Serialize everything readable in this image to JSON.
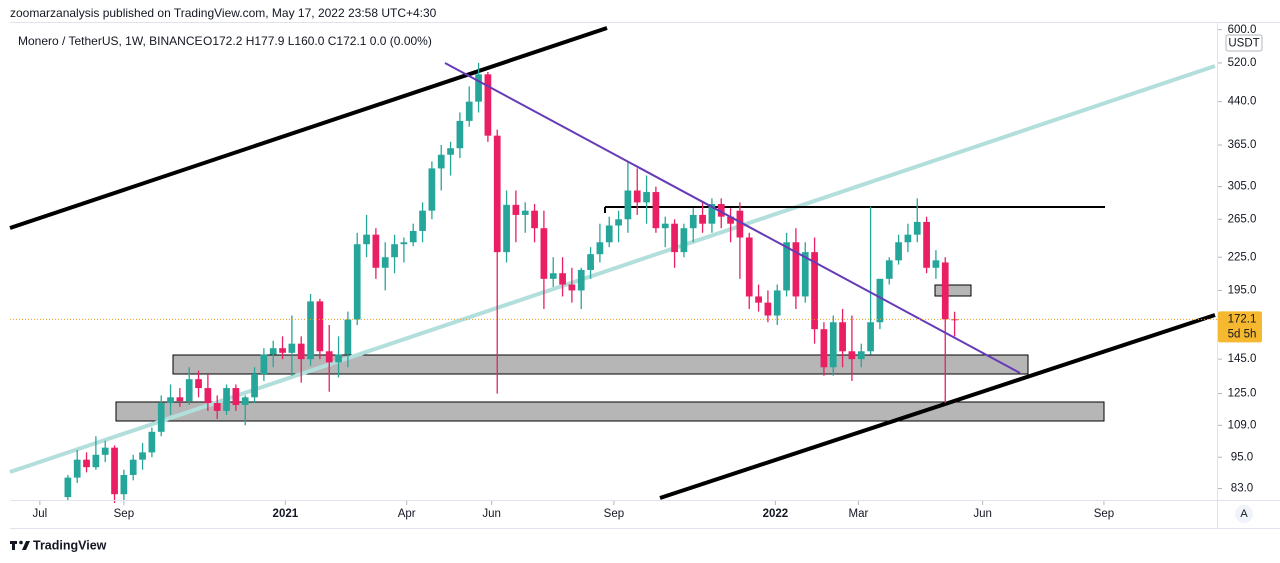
{
  "header": {
    "published": "zoomarzanalysis published on TradingView.com, May 17, 2022 23:58 UTC+4:30"
  },
  "chart_data": {
    "type": "candlestick",
    "title": "Monero / TetherUS, 1W, BINANCE",
    "ohlc": "O172.2 H177.9 L160.0 C172.1 0.0 (0.00%)",
    "up_color": "#26a69a",
    "down_color": "#e91e63",
    "log_scale": true,
    "open": [
      80,
      87,
      94,
      91,
      96,
      99,
      81,
      88,
      94,
      97,
      106,
      120,
      123,
      121,
      133,
      128,
      120,
      116,
      128,
      119,
      123,
      136,
      148,
      152,
      149,
      155,
      145,
      186,
      150,
      143,
      148,
      172,
      238,
      248,
      215,
      225,
      238,
      240,
      252,
      275,
      330,
      350,
      360,
      405,
      440,
      495,
      380,
      230,
      282,
      270,
      275,
      255,
      205,
      210,
      200,
      195,
      213,
      228,
      240,
      258,
      265,
      300,
      285,
      298,
      255,
      260,
      230,
      255,
      270,
      260,
      283,
      268,
      275,
      245,
      190,
      185,
      175,
      195,
      240,
      190,
      230,
      165,
      140,
      170,
      150,
      145,
      150,
      170,
      205,
      222,
      240,
      248,
      262,
      215,
      220,
      172.2
    ],
    "high": [
      88,
      98,
      97,
      104,
      102,
      100,
      90,
      96,
      101,
      108,
      124,
      130,
      128,
      140,
      138,
      136,
      124,
      130,
      130,
      124,
      140,
      152,
      157,
      160,
      175,
      160,
      192,
      188,
      168,
      160,
      178,
      250,
      270,
      255,
      240,
      248,
      245,
      260,
      285,
      340,
      365,
      370,
      420,
      470,
      520,
      500,
      390,
      300,
      300,
      285,
      283,
      275,
      225,
      225,
      215,
      215,
      235,
      260,
      268,
      275,
      340,
      330,
      320,
      305,
      268,
      265,
      260,
      278,
      285,
      290,
      290,
      278,
      285,
      250,
      200,
      195,
      200,
      250,
      255,
      240,
      245,
      170,
      175,
      180,
      175,
      155,
      280,
      205,
      225,
      248,
      260,
      290,
      268,
      232,
      225,
      177.9
    ],
    "low": [
      79,
      85,
      89,
      90,
      93,
      78,
      79,
      86,
      90,
      95,
      104,
      114,
      118,
      119,
      123,
      116,
      112,
      114,
      116,
      109,
      120,
      132,
      140,
      145,
      135,
      131,
      141,
      145,
      126,
      134,
      140,
      168,
      225,
      205,
      195,
      210,
      220,
      236,
      240,
      265,
      300,
      320,
      345,
      395,
      420,
      370,
      125,
      220,
      240,
      250,
      240,
      180,
      198,
      190,
      185,
      180,
      205,
      220,
      235,
      240,
      250,
      270,
      260,
      250,
      235,
      215,
      225,
      240,
      250,
      250,
      255,
      240,
      205,
      180,
      178,
      170,
      168,
      190,
      180,
      185,
      155,
      135,
      135,
      140,
      132,
      140,
      148,
      165,
      200,
      218,
      230,
      240,
      210,
      205,
      120,
      160
    ],
    "close": [
      87,
      94,
      91,
      96,
      99,
      81,
      88,
      94,
      97,
      106,
      120,
      123,
      121,
      133,
      128,
      120,
      116,
      128,
      119,
      123,
      136,
      148,
      152,
      149,
      155,
      145,
      186,
      150,
      143,
      148,
      172,
      238,
      248,
      215,
      225,
      238,
      240,
      252,
      275,
      330,
      350,
      360,
      405,
      440,
      495,
      380,
      230,
      282,
      270,
      275,
      255,
      205,
      210,
      200,
      195,
      213,
      228,
      240,
      258,
      265,
      300,
      285,
      298,
      255,
      260,
      230,
      255,
      270,
      260,
      283,
      268,
      260,
      245,
      190,
      185,
      175,
      195,
      240,
      190,
      230,
      165,
      140,
      170,
      150,
      145,
      150,
      170,
      205,
      222,
      240,
      248,
      262,
      215,
      222,
      172.2,
      172.1
    ],
    "ylim": [
      79,
      615
    ],
    "yticks": [
      {
        "value": 83,
        "label": "83.0"
      },
      {
        "value": 95,
        "label": "95.0"
      },
      {
        "value": 109,
        "label": "109.0"
      },
      {
        "value": 125,
        "label": "125.0"
      },
      {
        "value": 145,
        "label": "145.0"
      },
      {
        "value": 195,
        "label": "195.0"
      },
      {
        "value": 225,
        "label": "225.0"
      },
      {
        "value": 265,
        "label": "265.0"
      },
      {
        "value": 305,
        "label": "305.0"
      },
      {
        "value": 365,
        "label": "365.0"
      },
      {
        "value": 440,
        "label": "440.0"
      },
      {
        "value": 520,
        "label": "520.0"
      },
      {
        "value": 600,
        "label": "600.0"
      }
    ],
    "xlim": [
      -6.2,
      122.9
    ],
    "xticks": [
      {
        "value": -3,
        "label": "Jul"
      },
      {
        "value": 6,
        "label": "Sep"
      },
      {
        "value": 23.3,
        "label": "2021"
      },
      {
        "value": 36.3,
        "label": "Apr"
      },
      {
        "value": 45.4,
        "label": "Jun"
      },
      {
        "value": 58.5,
        "label": "Sep"
      },
      {
        "value": 75.8,
        "label": "2022"
      },
      {
        "value": 84.7,
        "label": "Mar"
      },
      {
        "value": 98,
        "label": "Jun"
      },
      {
        "value": 111,
        "label": "Sep"
      }
    ],
    "last_price": {
      "value": 172.1,
      "label": "172.1"
    },
    "countdown": "5d 5h",
    "currency": "USDT",
    "scale_mode": "A",
    "brand": "TradingView"
  }
}
